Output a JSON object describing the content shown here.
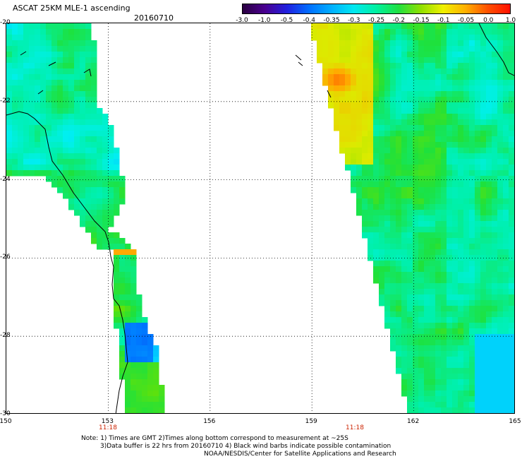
{
  "header": {
    "title": "ASCAT 25KM MLE-1 ascending",
    "date": "20160710"
  },
  "colorbar": {
    "labels": [
      "-3.0",
      "-1.0",
      "-0.5",
      "-0.4",
      "-0.35",
      "-0.3",
      "-0.25",
      "-0.2",
      "-0.15",
      "-0.1",
      "-0.05",
      "0.0",
      "1.0"
    ],
    "colors": [
      "#2a0040",
      "#4a0090",
      "#2020e0",
      "#0070ff",
      "#00b0ff",
      "#00e8f0",
      "#00f0a0",
      "#20e040",
      "#90e000",
      "#f0f000",
      "#ffb000",
      "#ff5000",
      "#ff1000"
    ]
  },
  "axes": {
    "lat_labels": [
      "-20",
      "-22",
      "-24",
      "-26",
      "-28",
      "-30"
    ],
    "lon_labels": [
      "150",
      "153",
      "156",
      "159",
      "162",
      "165"
    ],
    "time_labels": [
      "11:18",
      "11:18"
    ]
  },
  "footer": {
    "note_line1": "Note: 1) Times are GMT 2)Times along bottom correspond to measurement at ~25S",
    "note_line2": "3)Data buffer is 22 hrs from 20160710 4) Black wind barbs indicate possible contamination",
    "note_line3": "NOAA/NESDIS/Center for Satellite Applications and Research"
  }
}
